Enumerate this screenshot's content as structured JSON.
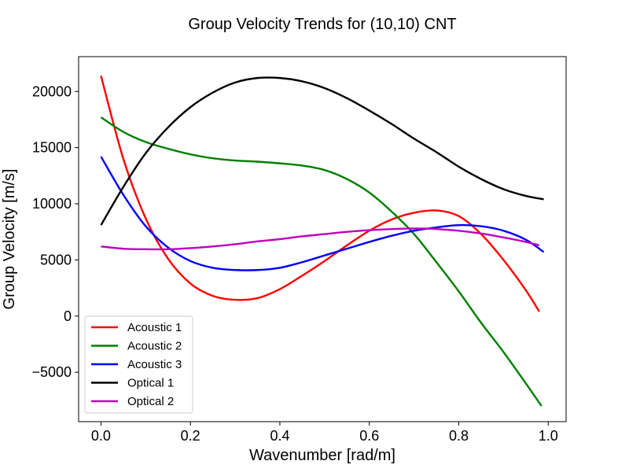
{
  "chart_data": {
    "type": "line",
    "title": "Group Velocity Trends for (10,10) CNT",
    "xlabel": "Wavenumber [rad/m]",
    "ylabel": "Group Velocity [m/s]",
    "xlim": [
      -0.05,
      1.04
    ],
    "ylim": [
      -9400,
      23100
    ],
    "xticks": [
      0.0,
      0.2,
      0.4,
      0.6,
      0.8,
      1.0
    ],
    "xtick_labels": [
      "0.0",
      "0.2",
      "0.4",
      "0.6",
      "0.8",
      "1.0"
    ],
    "yticks": [
      -5000,
      0,
      5000,
      10000,
      15000,
      20000
    ],
    "ytick_labels": [
      "−5000",
      "0",
      "5000",
      "10000",
      "15000",
      "20000"
    ],
    "grid": false,
    "legend_position": "lower-left",
    "series": [
      {
        "name": "Acoustic 1",
        "color": "#ff0000",
        "x": [
          0.0,
          0.05,
          0.1,
          0.15,
          0.2,
          0.25,
          0.3,
          0.35,
          0.4,
          0.45,
          0.5,
          0.55,
          0.6,
          0.65,
          0.7,
          0.75,
          0.8,
          0.85,
          0.9,
          0.95,
          0.98
        ],
        "y": [
          21400,
          14000,
          8700,
          5100,
          2900,
          1800,
          1450,
          1600,
          2400,
          3600,
          4900,
          6300,
          7600,
          8600,
          9200,
          9400,
          8900,
          7300,
          5000,
          2300,
          400
        ]
      },
      {
        "name": "Acoustic 2",
        "color": "#008000",
        "x": [
          0.0,
          0.05,
          0.1,
          0.15,
          0.2,
          0.25,
          0.3,
          0.35,
          0.4,
          0.45,
          0.5,
          0.55,
          0.6,
          0.65,
          0.7,
          0.75,
          0.8,
          0.85,
          0.9,
          0.95,
          0.985
        ],
        "y": [
          17700,
          16400,
          15500,
          14900,
          14400,
          14050,
          13850,
          13750,
          13600,
          13400,
          13000,
          12200,
          11000,
          9300,
          7300,
          4800,
          2200,
          -600,
          -3200,
          -6000,
          -8000
        ]
      },
      {
        "name": "Acoustic 3",
        "color": "#0000ff",
        "x": [
          0.0,
          0.05,
          0.1,
          0.15,
          0.2,
          0.25,
          0.3,
          0.35,
          0.4,
          0.45,
          0.5,
          0.55,
          0.6,
          0.65,
          0.7,
          0.75,
          0.8,
          0.85,
          0.9,
          0.95,
          0.99
        ],
        "y": [
          14200,
          10800,
          8000,
          6100,
          4900,
          4300,
          4100,
          4100,
          4300,
          4800,
          5400,
          6000,
          6600,
          7150,
          7600,
          7900,
          8100,
          8000,
          7600,
          6800,
          5700
        ]
      },
      {
        "name": "Optical 1",
        "color": "#000000",
        "x": [
          0.0,
          0.05,
          0.1,
          0.15,
          0.2,
          0.25,
          0.3,
          0.35,
          0.4,
          0.45,
          0.5,
          0.55,
          0.6,
          0.65,
          0.7,
          0.75,
          0.8,
          0.85,
          0.9,
          0.95,
          0.99
        ],
        "y": [
          8100,
          11500,
          14500,
          16800,
          18600,
          19900,
          20800,
          21200,
          21200,
          20900,
          20300,
          19400,
          18300,
          17100,
          15800,
          14600,
          13300,
          12200,
          11300,
          10700,
          10400
        ]
      },
      {
        "name": "Optical 2",
        "color": "#bf00bf",
        "x": [
          0.0,
          0.05,
          0.1,
          0.15,
          0.2,
          0.25,
          0.3,
          0.35,
          0.4,
          0.45,
          0.5,
          0.55,
          0.6,
          0.65,
          0.7,
          0.75,
          0.8,
          0.85,
          0.9,
          0.95,
          0.98
        ],
        "y": [
          6200,
          6000,
          5950,
          5950,
          6050,
          6200,
          6400,
          6650,
          6850,
          7100,
          7300,
          7500,
          7650,
          7750,
          7800,
          7750,
          7600,
          7350,
          7000,
          6600,
          6300
        ]
      }
    ]
  }
}
